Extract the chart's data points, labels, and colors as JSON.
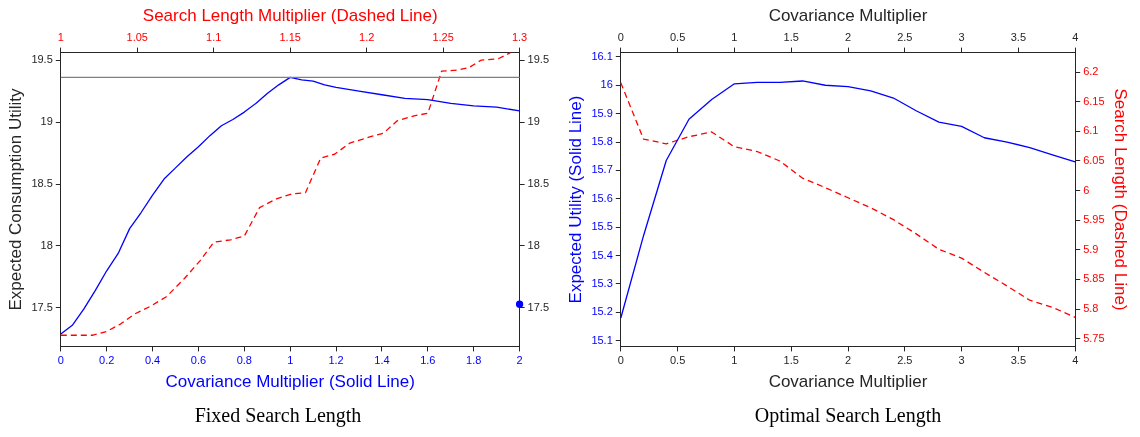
{
  "chart_data": [
    {
      "type": "line",
      "title": "Fixed Search Length",
      "xlabel": "Covariance Multiplier (Solid Line)",
      "x2label": "Search Length Multiplier (Dashed Line)",
      "ylabel": "Expected Consumption Utility",
      "xlim": [
        0,
        2
      ],
      "xticks": [
        0,
        0.2,
        0.4,
        0.6,
        0.8,
        1,
        1.2,
        1.4,
        1.6,
        1.8,
        2
      ],
      "x2lim": [
        1,
        1.3
      ],
      "x2ticks": [
        1,
        1.05,
        1.1,
        1.15,
        1.2,
        1.25,
        1.3
      ],
      "ylim": [
        17.19,
        19.56
      ],
      "yticks": [
        17.5,
        18,
        18.5,
        19,
        19.5
      ],
      "y2lim": [
        17.19,
        19.56
      ],
      "y2ticks": [
        17.5,
        18,
        18.5,
        19,
        19.5
      ],
      "grid": false,
      "legend": false,
      "ref_lines": [
        {
          "axis": "y",
          "value": 19.36,
          "color": "#808080"
        }
      ],
      "series": [
        {
          "type": "line",
          "color": "#0000ff",
          "marker": "none",
          "line_style": "solid",
          "x": [
            0,
            0.05,
            0.1,
            0.15,
            0.2,
            0.25,
            0.3,
            0.35,
            0.4,
            0.45,
            0.5,
            0.55,
            0.6,
            0.65,
            0.7,
            0.75,
            0.8,
            0.85,
            0.9,
            0.95,
            1,
            1.05,
            1.1,
            1.15,
            1.2,
            1.3,
            1.4,
            1.5,
            1.6,
            1.7,
            1.8,
            1.9,
            2
          ],
          "values": [
            17.29,
            17.36,
            17.49,
            17.64,
            17.8,
            17.94,
            18.14,
            18.27,
            18.41,
            18.54,
            18.63,
            18.72,
            18.8,
            18.89,
            18.97,
            19.02,
            19.08,
            19.15,
            19.23,
            19.3,
            19.36,
            19.34,
            19.33,
            19.3,
            19.28,
            19.25,
            19.22,
            19.19,
            19.18,
            19.15,
            19.13,
            19.12,
            19.09
          ]
        },
        {
          "type": "line",
          "axis": "x2",
          "color": "#ff0000",
          "marker": "none",
          "line_style": "dashed",
          "x": [
            1,
            1.016,
            1.021,
            1.03,
            1.039,
            1.048,
            1.058,
            1.069,
            1.081,
            1.091,
            1.1,
            1.111,
            1.12,
            1.13,
            1.141,
            1.151,
            1.16,
            1.17,
            1.179,
            1.189,
            1.202,
            1.211,
            1.22,
            1.231,
            1.24,
            1.249,
            1.26,
            1.267,
            1.275,
            1.286,
            1.291,
            1.294
          ],
          "values": [
            17.28,
            17.28,
            17.28,
            17.31,
            17.37,
            17.45,
            17.51,
            17.59,
            17.74,
            17.88,
            18.03,
            18.05,
            18.08,
            18.31,
            18.38,
            18.42,
            18.43,
            18.71,
            18.74,
            18.83,
            18.88,
            18.91,
            19.01,
            19.05,
            19.07,
            19.41,
            19.42,
            19.44,
            19.5,
            19.51,
            19.54,
            19.56
          ]
        },
        {
          "type": "scatter",
          "color": "#0000ff",
          "marker": "circle",
          "x": [
            2
          ],
          "values": [
            17.53
          ]
        }
      ]
    },
    {
      "type": "line",
      "title": "Optimal Search Length",
      "xlabel": "Covariance Multiplier",
      "x2label": "Covariance Multiplier",
      "ylabel": "Expected Utility (Solid Line)",
      "y2label": "Search Length (Dashed Line)",
      "xlim": [
        0,
        4
      ],
      "xticks": [
        0,
        0.5,
        1,
        1.5,
        2,
        2.5,
        3,
        3.5,
        4
      ],
      "x2lim": [
        0,
        4
      ],
      "x2ticks": [
        0,
        0.5,
        1,
        1.5,
        2,
        2.5,
        3,
        3.5,
        4
      ],
      "ylim": [
        15.08,
        16.115
      ],
      "yticks": [
        15.1,
        15.2,
        15.3,
        15.4,
        15.5,
        15.6,
        15.7,
        15.8,
        15.9,
        16,
        16.1
      ],
      "y2lim": [
        5.737,
        6.233
      ],
      "y2ticks": [
        5.75,
        5.8,
        5.85,
        5.9,
        5.95,
        6,
        6.05,
        6.1,
        6.15,
        6.2
      ],
      "grid": false,
      "legend": false,
      "x": [
        0,
        0.2,
        0.4,
        0.6,
        0.8,
        1,
        1.2,
        1.4,
        1.6,
        1.8,
        2,
        2.2,
        2.4,
        2.6,
        2.8,
        3,
        3.2,
        3.4,
        3.6,
        3.8,
        4
      ],
      "series": [
        {
          "type": "line",
          "color": "#0000ff",
          "marker": "none",
          "line_style": "solid",
          "values": [
            15.18,
            15.47,
            15.735,
            15.88,
            15.95,
            16.005,
            16.01,
            16.01,
            16.015,
            16,
            15.995,
            15.98,
            15.955,
            15.91,
            15.87,
            15.855,
            15.815,
            15.8,
            15.78,
            15.755,
            15.73
          ]
        },
        {
          "type": "line",
          "axis": "y2",
          "color": "#ff0000",
          "marker": "none",
          "line_style": "dashed",
          "values": [
            6.182,
            6.087,
            6.079,
            6.091,
            6.099,
            6.074,
            6.066,
            6.05,
            6.021,
            6.005,
            5.988,
            5.971,
            5.951,
            5.927,
            5.901,
            5.886,
            5.862,
            5.839,
            5.815,
            5.803,
            5.786
          ]
        }
      ]
    }
  ]
}
